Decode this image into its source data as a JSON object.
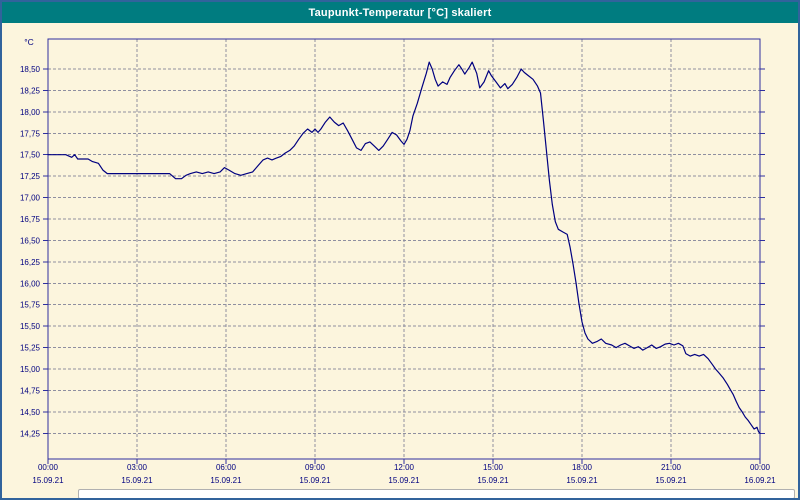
{
  "colors": {
    "titlebar_bg": "#007C80",
    "titlebar_text": "#FFFFFF",
    "background": "#FCF5DD",
    "plot_border": "#2F2F9F",
    "grid": "#8F8FA0",
    "axis_text": "#000080",
    "series": "#000080",
    "window_border": "#31639C"
  },
  "chart_data": {
    "type": "line",
    "title": "Taupunkt-Temperatur [°C] skaliert",
    "grid": "dashed",
    "legend": "none",
    "y_axis": {
      "unit": "°C",
      "min": 13.95,
      "max": 18.85,
      "ticks": [
        {
          "value": 18.5,
          "label": "18,50"
        },
        {
          "value": 18.25,
          "label": "18,25"
        },
        {
          "value": 18.0,
          "label": "18,00"
        },
        {
          "value": 17.75,
          "label": "17,75"
        },
        {
          "value": 17.5,
          "label": "17,50"
        },
        {
          "value": 17.25,
          "label": "17,25"
        },
        {
          "value": 17.0,
          "label": "17,00"
        },
        {
          "value": 16.75,
          "label": "16,75"
        },
        {
          "value": 16.5,
          "label": "16,50"
        },
        {
          "value": 16.25,
          "label": "16,25"
        },
        {
          "value": 16.0,
          "label": "16,00"
        },
        {
          "value": 15.75,
          "label": "15,75"
        },
        {
          "value": 15.5,
          "label": "15,50"
        },
        {
          "value": 15.25,
          "label": "15,25"
        },
        {
          "value": 15.0,
          "label": "15,00"
        },
        {
          "value": 14.75,
          "label": "14,75"
        },
        {
          "value": 14.5,
          "label": "14,50"
        },
        {
          "value": 14.25,
          "label": "14,25"
        }
      ]
    },
    "x_axis": {
      "min_hours": 0,
      "max_hours": 24,
      "ticks": [
        {
          "hour": 0,
          "time": "00:00",
          "date": "15.09.21"
        },
        {
          "hour": 3,
          "time": "03:00",
          "date": "15.09.21"
        },
        {
          "hour": 6,
          "time": "06:00",
          "date": "15.09.21"
        },
        {
          "hour": 9,
          "time": "09:00",
          "date": "15.09.21"
        },
        {
          "hour": 12,
          "time": "12:00",
          "date": "15.09.21"
        },
        {
          "hour": 15,
          "time": "15:00",
          "date": "15.09.21"
        },
        {
          "hour": 18,
          "time": "18:00",
          "date": "15.09.21"
        },
        {
          "hour": 21,
          "time": "21:00",
          "date": "15.09.21"
        },
        {
          "hour": 24,
          "time": "00:00",
          "date": "16.09.21"
        }
      ]
    },
    "series": [
      {
        "name": "Taupunkt-Temperatur",
        "color": "#000080",
        "points": [
          [
            0.0,
            17.5
          ],
          [
            0.3,
            17.5
          ],
          [
            0.6,
            17.5
          ],
          [
            0.8,
            17.47
          ],
          [
            0.9,
            17.5
          ],
          [
            1.0,
            17.45
          ],
          [
            1.2,
            17.45
          ],
          [
            1.35,
            17.45
          ],
          [
            1.5,
            17.42
          ],
          [
            1.7,
            17.4
          ],
          [
            1.85,
            17.32
          ],
          [
            2.0,
            17.28
          ],
          [
            2.2,
            17.28
          ],
          [
            2.5,
            17.28
          ],
          [
            2.8,
            17.28
          ],
          [
            3.0,
            17.28
          ],
          [
            3.3,
            17.28
          ],
          [
            3.6,
            17.28
          ],
          [
            3.9,
            17.28
          ],
          [
            4.1,
            17.28
          ],
          [
            4.3,
            17.22
          ],
          [
            4.5,
            17.22
          ],
          [
            4.65,
            17.26
          ],
          [
            4.8,
            17.28
          ],
          [
            5.0,
            17.3
          ],
          [
            5.2,
            17.28
          ],
          [
            5.4,
            17.3
          ],
          [
            5.6,
            17.28
          ],
          [
            5.8,
            17.3
          ],
          [
            5.95,
            17.35
          ],
          [
            6.1,
            17.32
          ],
          [
            6.3,
            17.28
          ],
          [
            6.5,
            17.26
          ],
          [
            6.7,
            17.28
          ],
          [
            6.9,
            17.3
          ],
          [
            7.1,
            17.38
          ],
          [
            7.25,
            17.44
          ],
          [
            7.4,
            17.46
          ],
          [
            7.55,
            17.44
          ],
          [
            7.7,
            17.46
          ],
          [
            7.85,
            17.48
          ],
          [
            8.0,
            17.52
          ],
          [
            8.15,
            17.55
          ],
          [
            8.3,
            17.6
          ],
          [
            8.45,
            17.68
          ],
          [
            8.6,
            17.75
          ],
          [
            8.75,
            17.8
          ],
          [
            8.9,
            17.76
          ],
          [
            9.0,
            17.8
          ],
          [
            9.1,
            17.76
          ],
          [
            9.2,
            17.8
          ],
          [
            9.35,
            17.88
          ],
          [
            9.5,
            17.94
          ],
          [
            9.65,
            17.88
          ],
          [
            9.8,
            17.84
          ],
          [
            9.95,
            17.87
          ],
          [
            10.1,
            17.78
          ],
          [
            10.25,
            17.68
          ],
          [
            10.4,
            17.58
          ],
          [
            10.55,
            17.55
          ],
          [
            10.7,
            17.63
          ],
          [
            10.85,
            17.65
          ],
          [
            11.0,
            17.6
          ],
          [
            11.15,
            17.55
          ],
          [
            11.3,
            17.6
          ],
          [
            11.45,
            17.68
          ],
          [
            11.6,
            17.76
          ],
          [
            11.75,
            17.73
          ],
          [
            11.9,
            17.66
          ],
          [
            12.0,
            17.62
          ],
          [
            12.1,
            17.68
          ],
          [
            12.2,
            17.78
          ],
          [
            12.3,
            17.95
          ],
          [
            12.45,
            18.1
          ],
          [
            12.6,
            18.28
          ],
          [
            12.75,
            18.45
          ],
          [
            12.85,
            18.58
          ],
          [
            12.95,
            18.5
          ],
          [
            13.05,
            18.38
          ],
          [
            13.15,
            18.3
          ],
          [
            13.3,
            18.35
          ],
          [
            13.45,
            18.32
          ],
          [
            13.55,
            18.4
          ],
          [
            13.7,
            18.48
          ],
          [
            13.85,
            18.55
          ],
          [
            13.95,
            18.5
          ],
          [
            14.05,
            18.44
          ],
          [
            14.2,
            18.52
          ],
          [
            14.3,
            18.58
          ],
          [
            14.45,
            18.45
          ],
          [
            14.55,
            18.28
          ],
          [
            14.7,
            18.35
          ],
          [
            14.85,
            18.48
          ],
          [
            14.95,
            18.42
          ],
          [
            15.1,
            18.35
          ],
          [
            15.25,
            18.28
          ],
          [
            15.4,
            18.33
          ],
          [
            15.5,
            18.27
          ],
          [
            15.65,
            18.32
          ],
          [
            15.8,
            18.4
          ],
          [
            15.95,
            18.5
          ],
          [
            16.05,
            18.46
          ],
          [
            16.2,
            18.42
          ],
          [
            16.35,
            18.38
          ],
          [
            16.5,
            18.3
          ],
          [
            16.6,
            18.22
          ],
          [
            16.7,
            17.9
          ],
          [
            16.8,
            17.55
          ],
          [
            16.9,
            17.2
          ],
          [
            17.0,
            16.92
          ],
          [
            17.1,
            16.72
          ],
          [
            17.2,
            16.63
          ],
          [
            17.35,
            16.6
          ],
          [
            17.5,
            16.57
          ],
          [
            17.6,
            16.42
          ],
          [
            17.7,
            16.22
          ],
          [
            17.8,
            16.0
          ],
          [
            17.9,
            15.76
          ],
          [
            18.0,
            15.55
          ],
          [
            18.1,
            15.42
          ],
          [
            18.2,
            15.35
          ],
          [
            18.35,
            15.3
          ],
          [
            18.5,
            15.32
          ],
          [
            18.65,
            15.35
          ],
          [
            18.8,
            15.3
          ],
          [
            19.0,
            15.28
          ],
          [
            19.15,
            15.25
          ],
          [
            19.3,
            15.28
          ],
          [
            19.45,
            15.3
          ],
          [
            19.6,
            15.27
          ],
          [
            19.75,
            15.24
          ],
          [
            19.9,
            15.26
          ],
          [
            20.05,
            15.22
          ],
          [
            20.2,
            15.25
          ],
          [
            20.35,
            15.28
          ],
          [
            20.5,
            15.24
          ],
          [
            20.65,
            15.26
          ],
          [
            20.8,
            15.29
          ],
          [
            20.95,
            15.3
          ],
          [
            21.1,
            15.28
          ],
          [
            21.25,
            15.3
          ],
          [
            21.4,
            15.27
          ],
          [
            21.5,
            15.18
          ],
          [
            21.65,
            15.15
          ],
          [
            21.8,
            15.17
          ],
          [
            21.95,
            15.15
          ],
          [
            22.1,
            15.17
          ],
          [
            22.25,
            15.12
          ],
          [
            22.4,
            15.05
          ],
          [
            22.5,
            15.0
          ],
          [
            22.6,
            14.96
          ],
          [
            22.75,
            14.9
          ],
          [
            22.9,
            14.82
          ],
          [
            23.0,
            14.76
          ],
          [
            23.1,
            14.7
          ],
          [
            23.2,
            14.62
          ],
          [
            23.3,
            14.55
          ],
          [
            23.4,
            14.5
          ],
          [
            23.5,
            14.44
          ],
          [
            23.6,
            14.4
          ],
          [
            23.7,
            14.35
          ],
          [
            23.8,
            14.3
          ],
          [
            23.9,
            14.32
          ],
          [
            23.95,
            14.27
          ],
          [
            24.0,
            14.25
          ]
        ]
      }
    ]
  }
}
